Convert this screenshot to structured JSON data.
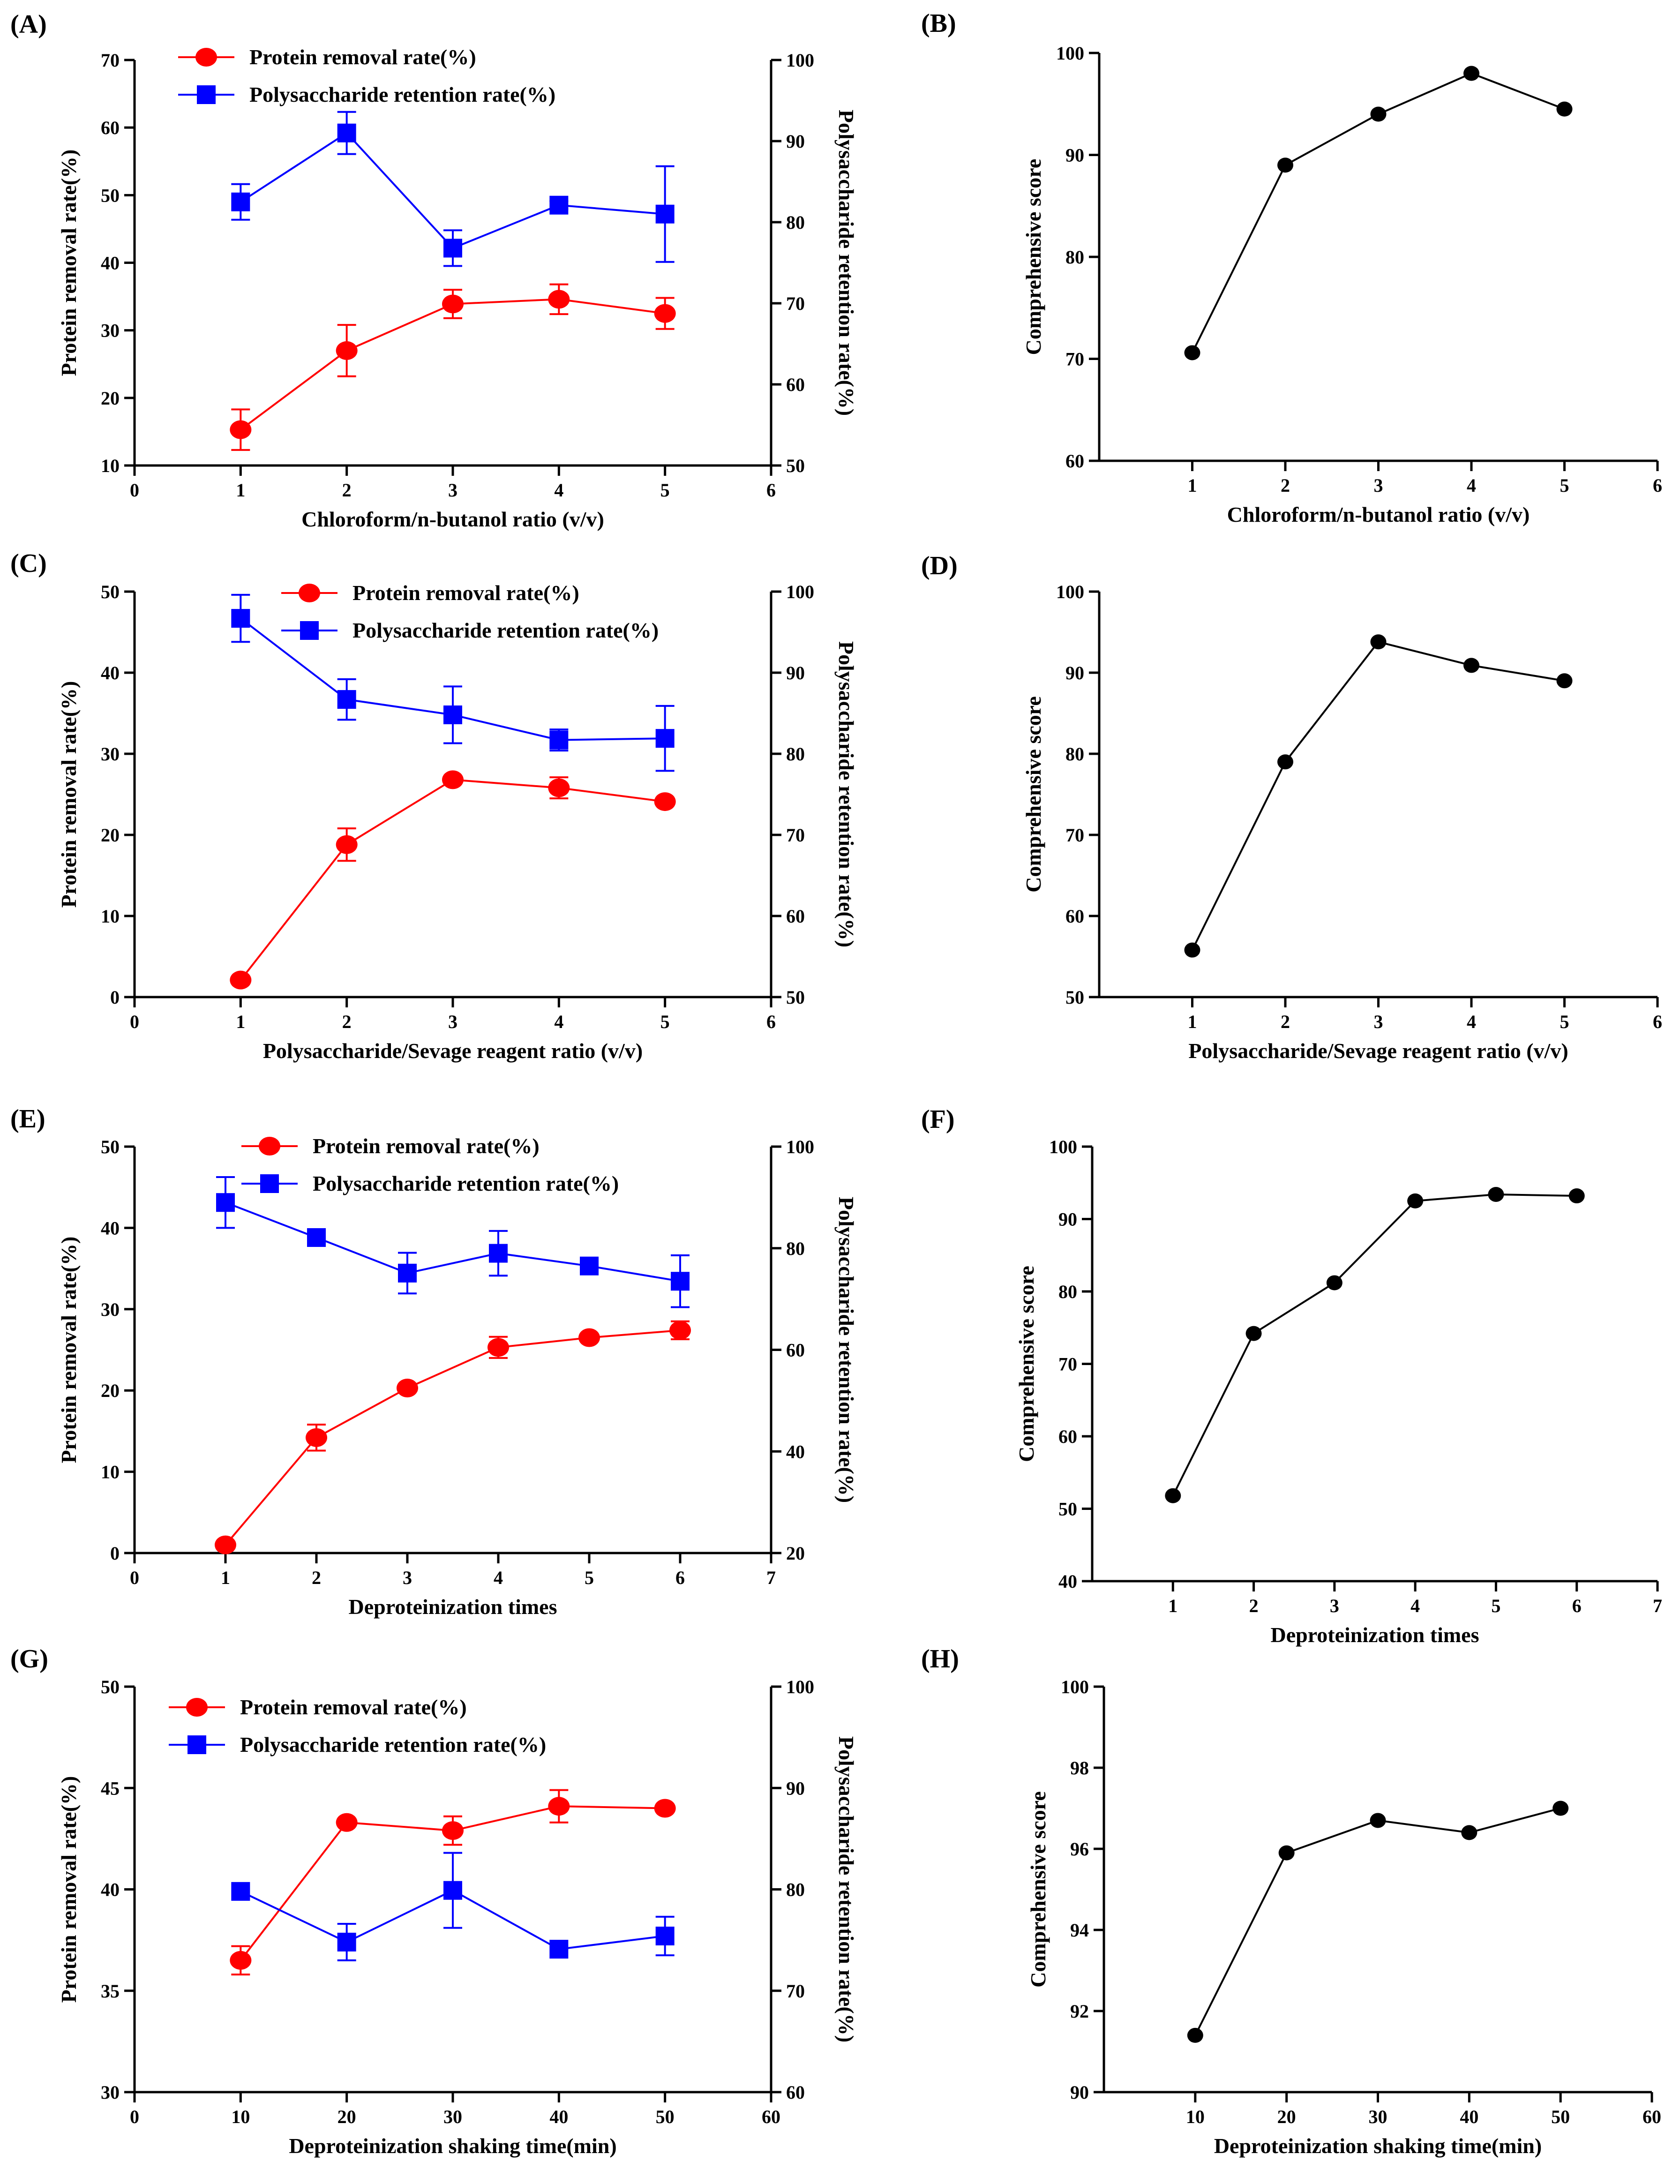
{
  "chart_data": [
    {
      "panel": "(A)",
      "type": "line",
      "dual_axis": true,
      "xlabel": "Chloroform/n-butanol ratio (v/v)",
      "ylabel_left": "Protein removal rate(%)",
      "ylabel_right": "Polysaccharide retention rate(%)",
      "xlim": [
        0,
        6
      ],
      "xticks": [
        0,
        1,
        2,
        3,
        4,
        5,
        6
      ],
      "ylim_left": [
        10,
        70
      ],
      "yticks_left": [
        10,
        20,
        30,
        40,
        50,
        60,
        70
      ],
      "ylim_right": [
        50,
        100
      ],
      "yticks_right": [
        50,
        60,
        70,
        80,
        90,
        100
      ],
      "series": [
        {
          "name": "Protein removal rate(%)",
          "axis": "left",
          "color": "#ff0000",
          "marker": "circle",
          "x": [
            1,
            2,
            3,
            4,
            5
          ],
          "values": [
            15.3,
            27.0,
            33.9,
            34.6,
            32.5
          ],
          "errors": [
            3.0,
            3.8,
            2.1,
            2.2,
            2.3
          ]
        },
        {
          "name": "Polysaccharide retention rate(%)",
          "axis": "right",
          "color": "#0000ff",
          "marker": "square",
          "x": [
            1,
            2,
            3,
            4,
            5
          ],
          "values": [
            82.5,
            91.0,
            76.8,
            82.1,
            81.0
          ],
          "errors": [
            2.2,
            2.6,
            2.2,
            0.5,
            5.9
          ]
        }
      ]
    },
    {
      "panel": "(B)",
      "type": "line",
      "xlabel": "Chloroform/n-butanol ratio (v/v)",
      "ylabel": "Comprehensive score",
      "xlim": [
        0,
        6
      ],
      "xticks": [
        1,
        2,
        3,
        4,
        5,
        6
      ],
      "ylim": [
        60,
        100
      ],
      "yticks": [
        60,
        70,
        80,
        90,
        100
      ],
      "series": [
        {
          "name": "Comprehensive score",
          "color": "#000000",
          "marker": "circle",
          "x": [
            1,
            2,
            3,
            4,
            5
          ],
          "values": [
            70.6,
            89.0,
            94.0,
            98.0,
            94.5
          ]
        }
      ]
    },
    {
      "panel": "(C)",
      "type": "line",
      "dual_axis": true,
      "xlabel": "Polysaccharide/Sevage reagent ratio (v/v)",
      "ylabel_left": "Protein removal rate(%)",
      "ylabel_right": "Polysaccharide retention rate(%)",
      "xlim": [
        0,
        6
      ],
      "xticks": [
        0,
        1,
        2,
        3,
        4,
        5,
        6
      ],
      "ylim_left": [
        0,
        50
      ],
      "yticks_left": [
        0,
        10,
        20,
        30,
        40,
        50
      ],
      "ylim_right": [
        50,
        100
      ],
      "yticks_right": [
        50,
        60,
        70,
        80,
        90,
        100
      ],
      "series": [
        {
          "name": "Protein removal rate(%)",
          "axis": "left",
          "color": "#ff0000",
          "marker": "circle",
          "x": [
            1,
            2,
            3,
            4,
            5
          ],
          "values": [
            2.1,
            18.8,
            26.8,
            25.8,
            24.1
          ],
          "errors": [
            0,
            2.0,
            0,
            1.3,
            0
          ]
        },
        {
          "name": "Polysaccharide retention rate(%)",
          "axis": "right",
          "color": "#0000ff",
          "marker": "square",
          "x": [
            1,
            2,
            3,
            4,
            5
          ],
          "values": [
            96.7,
            86.7,
            84.8,
            81.7,
            81.9
          ],
          "errors": [
            2.9,
            2.5,
            3.5,
            1.3,
            4.0
          ]
        }
      ]
    },
    {
      "panel": "(D)",
      "type": "line",
      "xlabel": "Polysaccharide/Sevage reagent ratio (v/v)",
      "ylabel": "Comprehensive score",
      "xlim": [
        0,
        6
      ],
      "xticks": [
        1,
        2,
        3,
        4,
        5,
        6
      ],
      "ylim": [
        50,
        100
      ],
      "yticks": [
        50,
        60,
        70,
        80,
        90,
        100
      ],
      "series": [
        {
          "name": "Comprehensive score",
          "color": "#000000",
          "marker": "circle",
          "x": [
            1,
            2,
            3,
            4,
            5
          ],
          "values": [
            55.8,
            79.0,
            93.8,
            90.9,
            89.0
          ]
        }
      ]
    },
    {
      "panel": "(E)",
      "type": "line",
      "dual_axis": true,
      "xlabel": "Deproteinization times",
      "ylabel_left": "Protein removal rate(%)",
      "ylabel_right": "Polysaccharide retention rate(%)",
      "xlim": [
        0,
        7
      ],
      "xticks": [
        0,
        1,
        2,
        3,
        4,
        5,
        6,
        7
      ],
      "ylim_left": [
        0,
        50
      ],
      "yticks_left": [
        0,
        10,
        20,
        30,
        40,
        50
      ],
      "ylim_right": [
        20,
        100
      ],
      "yticks_right": [
        20,
        40,
        60,
        80,
        100
      ],
      "series": [
        {
          "name": "Protein removal rate(%)",
          "axis": "left",
          "color": "#ff0000",
          "marker": "circle",
          "x": [
            1,
            2,
            3,
            4,
            5,
            6
          ],
          "values": [
            1.0,
            14.2,
            20.3,
            25.3,
            26.5,
            27.4
          ],
          "errors": [
            0,
            1.6,
            0,
            1.3,
            0,
            1.1
          ]
        },
        {
          "name": "Polysaccharide retention rate(%)",
          "axis": "right",
          "color": "#0000ff",
          "marker": "square",
          "x": [
            1,
            2,
            3,
            4,
            5,
            6
          ],
          "values": [
            89.0,
            82.1,
            75.1,
            79.0,
            76.5,
            73.5
          ],
          "errors": [
            5.0,
            0,
            4.0,
            4.4,
            0,
            5.1
          ]
        }
      ]
    },
    {
      "panel": "(F)",
      "type": "line",
      "xlabel": "Deproteinization times",
      "ylabel": "Comprehensive score",
      "xlim": [
        0,
        7
      ],
      "xticks": [
        1,
        2,
        3,
        4,
        5,
        6,
        7
      ],
      "ylim": [
        40,
        100
      ],
      "yticks": [
        40,
        50,
        60,
        70,
        80,
        90,
        100
      ],
      "series": [
        {
          "name": "Comprehensive score",
          "color": "#000000",
          "marker": "circle",
          "x": [
            1,
            2,
            3,
            4,
            5,
            6
          ],
          "values": [
            51.8,
            74.2,
            81.2,
            92.5,
            93.4,
            93.2
          ]
        }
      ]
    },
    {
      "panel": "(G)",
      "type": "line",
      "dual_axis": true,
      "xlabel": "Deproteinization shaking time(min)",
      "ylabel_left": "Protein removal rate(%)",
      "ylabel_right": "Polysaccharide retention rate(%)",
      "xlim": [
        0,
        60
      ],
      "xticks": [
        0,
        10,
        20,
        30,
        40,
        50,
        60
      ],
      "ylim_left": [
        30,
        50
      ],
      "yticks_left": [
        30,
        35,
        40,
        45,
        50
      ],
      "ylim_right": [
        60,
        100
      ],
      "yticks_right": [
        60,
        70,
        80,
        90,
        100
      ],
      "series": [
        {
          "name": "Protein removal rate(%)",
          "axis": "left",
          "color": "#ff0000",
          "marker": "circle",
          "x": [
            10,
            20,
            30,
            40,
            50
          ],
          "values": [
            36.5,
            43.3,
            42.9,
            44.1,
            44.0
          ],
          "errors": [
            0.7,
            0,
            0.7,
            0.8,
            0
          ]
        },
        {
          "name": "Polysaccharide retention rate(%)",
          "axis": "right",
          "color": "#0000ff",
          "marker": "square",
          "x": [
            10,
            20,
            30,
            40,
            50
          ],
          "values": [
            79.8,
            74.8,
            79.9,
            74.1,
            75.4
          ],
          "errors": [
            0,
            1.8,
            3.7,
            0,
            1.9
          ]
        }
      ]
    },
    {
      "panel": "(H)",
      "type": "line",
      "xlabel": "Deproteinization shaking time(min)",
      "ylabel": "Comprehensive score",
      "xlim": [
        0,
        60
      ],
      "xticks": [
        10,
        20,
        30,
        40,
        50,
        60
      ],
      "ylim": [
        90,
        100
      ],
      "yticks": [
        90,
        92,
        94,
        96,
        98,
        100
      ],
      "series": [
        {
          "name": "Comprehensive score",
          "color": "#000000",
          "marker": "circle",
          "x": [
            10,
            20,
            30,
            40,
            50
          ],
          "values": [
            91.4,
            95.9,
            96.7,
            96.4,
            97.0
          ]
        }
      ]
    }
  ]
}
